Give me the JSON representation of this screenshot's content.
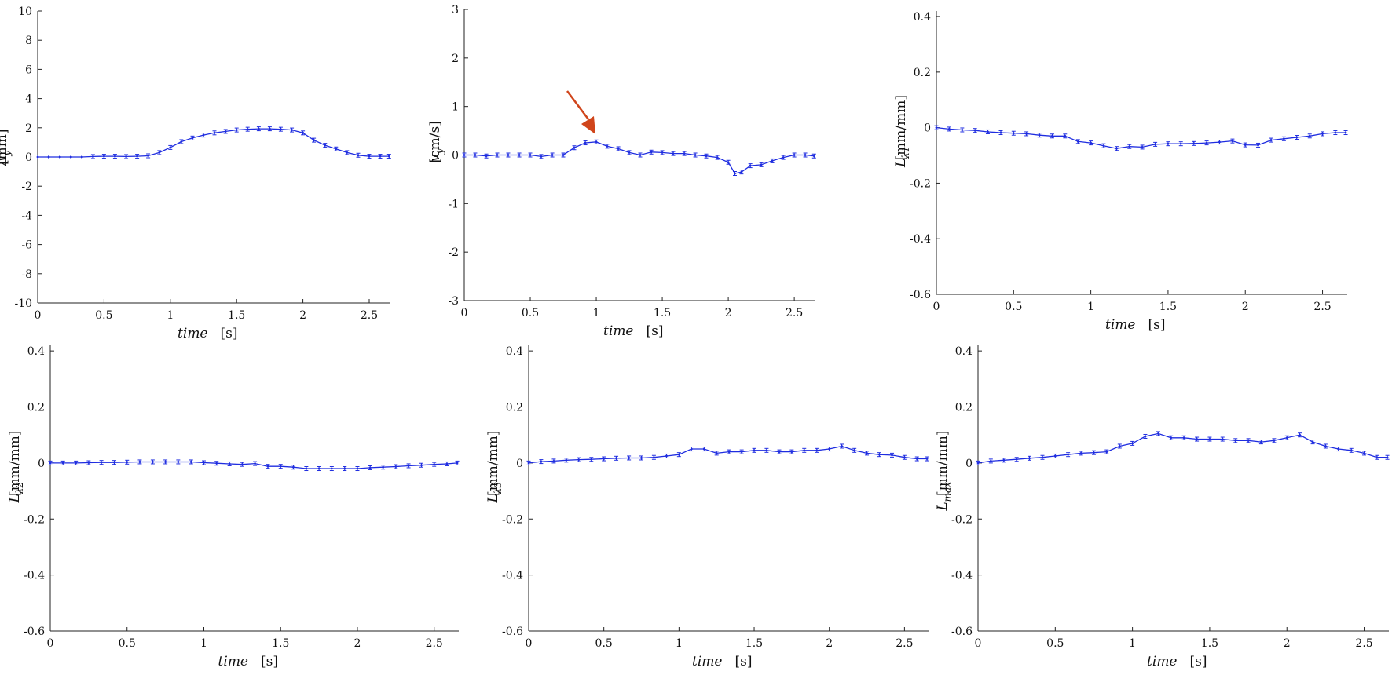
{
  "figure": {
    "arrow_color": "#d0451b",
    "line_color": "#1f2de0"
  },
  "chart_data": [
    {
      "type": "line",
      "xlabel": "time",
      "xunit": "[s]",
      "ylabel_base": "Δ",
      "ylabel_sub": "y",
      "yunit": "[mm]",
      "xlim": [
        0,
        2.66
      ],
      "ylim": [
        -10,
        10
      ],
      "xticks": [
        "0",
        "0.5",
        "1",
        "1.5",
        "2",
        "2.5"
      ],
      "yticks": [
        "-10",
        "-8",
        "-6",
        "-4",
        "-2",
        "0",
        "2",
        "4",
        "6",
        "8",
        "10"
      ],
      "series": [
        {
          "x": [
            0,
            0.083,
            0.167,
            0.25,
            0.333,
            0.417,
            0.5,
            0.583,
            0.667,
            0.75,
            0.833,
            0.917,
            1.0,
            1.083,
            1.167,
            1.25,
            1.333,
            1.417,
            1.5,
            1.583,
            1.667,
            1.75,
            1.833,
            1.917,
            2.0,
            2.083,
            2.167,
            2.25,
            2.333,
            2.417,
            2.5,
            2.583,
            2.65
          ],
          "y": [
            0,
            0,
            0,
            0,
            0,
            0.03,
            0.05,
            0.05,
            0.03,
            0.05,
            0.08,
            0.3,
            0.65,
            1.05,
            1.3,
            1.5,
            1.65,
            1.75,
            1.85,
            1.9,
            1.93,
            1.93,
            1.9,
            1.85,
            1.65,
            1.15,
            0.8,
            0.55,
            0.3,
            0.12,
            0.05,
            0.05,
            0.05
          ]
        }
      ]
    },
    {
      "type": "line",
      "xlabel": "time",
      "xunit": "[s]",
      "ylabel_base": "v",
      "ylabel_sub": "y",
      "yunit": "[cm/s]",
      "xlim": [
        0,
        2.66
      ],
      "ylim": [
        -3,
        3
      ],
      "xticks": [
        "0",
        "0.5",
        "1",
        "1.5",
        "2",
        "2.5"
      ],
      "yticks": [
        "-3",
        "-2",
        "-1",
        "0",
        "1",
        "2",
        "3"
      ],
      "annotation": "arrow",
      "series": [
        {
          "x": [
            0,
            0.083,
            0.167,
            0.25,
            0.333,
            0.417,
            0.5,
            0.583,
            0.667,
            0.75,
            0.833,
            0.917,
            1.0,
            1.083,
            1.167,
            1.25,
            1.333,
            1.417,
            1.5,
            1.583,
            1.667,
            1.75,
            1.833,
            1.917,
            2.0,
            2.05,
            2.1,
            2.167,
            2.25,
            2.333,
            2.417,
            2.5,
            2.583,
            2.65
          ],
          "y": [
            0,
            0,
            -0.02,
            0,
            0,
            0,
            0,
            -0.03,
            0,
            0,
            0.15,
            0.25,
            0.27,
            0.18,
            0.13,
            0.05,
            0,
            0.06,
            0.05,
            0.03,
            0.03,
            0,
            -0.02,
            -0.05,
            -0.15,
            -0.38,
            -0.35,
            -0.22,
            -0.2,
            -0.12,
            -0.05,
            0,
            0,
            -0.02
          ]
        }
      ]
    },
    {
      "type": "line",
      "xlabel": "time",
      "xunit": "[s]",
      "ylabel_base": "L",
      "ylabel_sub": "λ1",
      "yunit": "[mm/mm]",
      "xlim": [
        0,
        2.66
      ],
      "ylim": [
        -0.6,
        0.42
      ],
      "xticks": [
        "0",
        "0.5",
        "1",
        "1.5",
        "2",
        "2.5"
      ],
      "yticks": [
        "-0.6",
        "-0.4",
        "-0.2",
        "0",
        "0.2",
        "0.4"
      ],
      "series": [
        {
          "x": [
            0,
            0.083,
            0.167,
            0.25,
            0.333,
            0.417,
            0.5,
            0.583,
            0.667,
            0.75,
            0.833,
            0.917,
            1.0,
            1.083,
            1.167,
            1.25,
            1.333,
            1.417,
            1.5,
            1.583,
            1.667,
            1.75,
            1.833,
            1.917,
            2.0,
            2.083,
            2.167,
            2.25,
            2.333,
            2.417,
            2.5,
            2.583,
            2.65
          ],
          "y": [
            0,
            -0.005,
            -0.008,
            -0.01,
            -0.015,
            -0.018,
            -0.02,
            -0.022,
            -0.027,
            -0.03,
            -0.03,
            -0.05,
            -0.055,
            -0.065,
            -0.075,
            -0.068,
            -0.07,
            -0.06,
            -0.058,
            -0.058,
            -0.057,
            -0.055,
            -0.052,
            -0.048,
            -0.062,
            -0.063,
            -0.045,
            -0.04,
            -0.035,
            -0.03,
            -0.022,
            -0.018,
            -0.018
          ]
        }
      ]
    },
    {
      "type": "line",
      "xlabel": "time",
      "xunit": "[s]",
      "ylabel_base": "L",
      "ylabel_sub": "λ2",
      "yunit": "[mm/mm]",
      "xlim": [
        0,
        2.66
      ],
      "ylim": [
        -0.6,
        0.42
      ],
      "xticks": [
        "0",
        "0.5",
        "1",
        "1.5",
        "2",
        "2.5"
      ],
      "yticks": [
        "-0.6",
        "-0.4",
        "-0.2",
        "0",
        "0.2",
        "0.4"
      ],
      "series": [
        {
          "x": [
            0,
            0.083,
            0.167,
            0.25,
            0.333,
            0.417,
            0.5,
            0.583,
            0.667,
            0.75,
            0.833,
            0.917,
            1.0,
            1.083,
            1.167,
            1.25,
            1.333,
            1.417,
            1.5,
            1.583,
            1.667,
            1.75,
            1.833,
            1.917,
            2.0,
            2.083,
            2.167,
            2.25,
            2.333,
            2.417,
            2.5,
            2.583,
            2.65
          ],
          "y": [
            0,
            0,
            0,
            0.001,
            0.002,
            0.002,
            0.003,
            0.004,
            0.004,
            0.004,
            0.004,
            0.004,
            0.001,
            -0.001,
            -0.003,
            -0.005,
            -0.002,
            -0.012,
            -0.012,
            -0.015,
            -0.02,
            -0.02,
            -0.02,
            -0.02,
            -0.02,
            -0.017,
            -0.015,
            -0.013,
            -0.01,
            -0.008,
            -0.005,
            -0.003,
            0
          ]
        }
      ]
    },
    {
      "type": "line",
      "xlabel": "time",
      "xunit": "[s]",
      "ylabel_base": "L",
      "ylabel_sub": "λ3",
      "yunit": "[mm/mm]",
      "xlim": [
        0,
        2.66
      ],
      "ylim": [
        -0.6,
        0.42
      ],
      "xticks": [
        "0",
        "0.5",
        "1",
        "1.5",
        "2",
        "2.5"
      ],
      "yticks": [
        "-0.6",
        "-0.4",
        "-0.2",
        "0",
        "0.2",
        "0.4"
      ],
      "series": [
        {
          "x": [
            0,
            0.083,
            0.167,
            0.25,
            0.333,
            0.417,
            0.5,
            0.583,
            0.667,
            0.75,
            0.833,
            0.917,
            1.0,
            1.083,
            1.167,
            1.25,
            1.333,
            1.417,
            1.5,
            1.583,
            1.667,
            1.75,
            1.833,
            1.917,
            2.0,
            2.083,
            2.167,
            2.25,
            2.333,
            2.417,
            2.5,
            2.583,
            2.65
          ],
          "y": [
            0,
            0.005,
            0.007,
            0.01,
            0.012,
            0.013,
            0.015,
            0.017,
            0.018,
            0.018,
            0.02,
            0.025,
            0.03,
            0.05,
            0.05,
            0.035,
            0.04,
            0.04,
            0.045,
            0.045,
            0.04,
            0.04,
            0.045,
            0.045,
            0.05,
            0.06,
            0.045,
            0.035,
            0.03,
            0.028,
            0.02,
            0.015,
            0.015
          ]
        }
      ]
    },
    {
      "type": "line",
      "xlabel": "time",
      "xunit": "[s]",
      "ylabel_base": "L",
      "ylabel_sub": "max",
      "yunit": "[mm/mm]",
      "xlim": [
        0,
        2.66
      ],
      "ylim": [
        -0.6,
        0.42
      ],
      "xticks": [
        "0",
        "0.5",
        "1",
        "1.5",
        "2",
        "2.5"
      ],
      "yticks": [
        "-0.6",
        "-0.4",
        "-0.2",
        "0",
        "0.2",
        "0.4"
      ],
      "series": [
        {
          "x": [
            0,
            0.083,
            0.167,
            0.25,
            0.333,
            0.417,
            0.5,
            0.583,
            0.667,
            0.75,
            0.833,
            0.917,
            1.0,
            1.083,
            1.167,
            1.25,
            1.333,
            1.417,
            1.5,
            1.583,
            1.667,
            1.75,
            1.833,
            1.917,
            2.0,
            2.083,
            2.167,
            2.25,
            2.333,
            2.417,
            2.5,
            2.583,
            2.65
          ],
          "y": [
            0,
            0.007,
            0.01,
            0.013,
            0.017,
            0.02,
            0.025,
            0.03,
            0.035,
            0.037,
            0.04,
            0.06,
            0.07,
            0.095,
            0.105,
            0.09,
            0.09,
            0.085,
            0.085,
            0.085,
            0.08,
            0.08,
            0.075,
            0.08,
            0.09,
            0.1,
            0.075,
            0.06,
            0.05,
            0.045,
            0.035,
            0.02,
            0.02
          ]
        }
      ]
    }
  ]
}
